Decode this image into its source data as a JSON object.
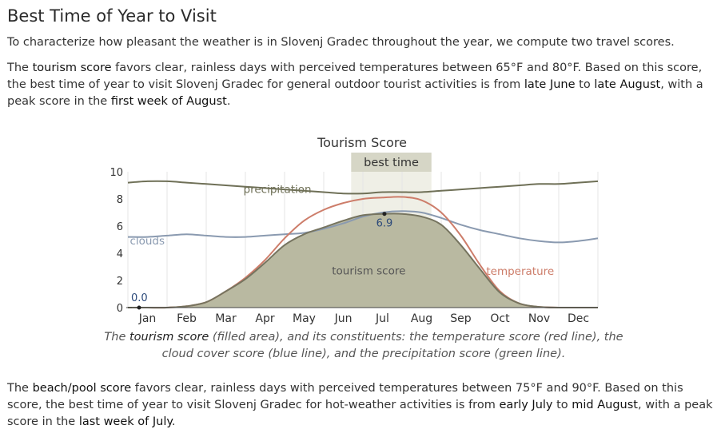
{
  "section": {
    "heading": "Best Time of Year to Visit",
    "intro": "To characterize how pleasant the weather is in Slovenj Gradec throughout the year, we compute two travel scores."
  },
  "tourism_paragraph": {
    "lead": "The ",
    "keyword": "tourism score",
    "text1": " favors clear, rainless days with perceived temperatures between 65°F and 80°F. Based on this score, the best time of year to visit Slovenj Gradec for general outdoor tourist activities is from ",
    "start": "late June",
    "text2": " to ",
    "end": "late August",
    "text3": ", with a peak score in the ",
    "peak": "first week of August",
    "text4": "."
  },
  "caption": {
    "lead": "The ",
    "keyword": "tourism score",
    "text": " (filled area), and its constituents: the temperature score (red line), the cloud cover score (blue line), and the precipitation score (green line)."
  },
  "beach_paragraph": {
    "lead": "The ",
    "keyword": "beach/pool score",
    "text1": " favors clear, rainless days with perceived temperatures between 75°F and 90°F. Based on this score, the best time of year to visit Slovenj Gradec for hot-weather activities is from ",
    "start": "early July",
    "text2": " to ",
    "end": "mid August",
    "text3": ", with a peak score in the ",
    "peak": "last week of July",
    "text4": "."
  },
  "chart_data": {
    "type": "area",
    "title": "Tourism Score",
    "ylim": [
      0,
      10
    ],
    "yticks": [
      0,
      2,
      4,
      6,
      8,
      10
    ],
    "x_range_month": [
      0,
      12
    ],
    "months": [
      "Jan",
      "Feb",
      "Mar",
      "Apr",
      "May",
      "Jun",
      "Jul",
      "Aug",
      "Sep",
      "Oct",
      "Nov",
      "Dec"
    ],
    "best_time": {
      "label": "best time",
      "start_month": 5.7,
      "end_month": 7.75
    },
    "annotations": {
      "min_label": "0.0",
      "min_x": 0.0,
      "min_y": 0.0,
      "peak_label": "6.9",
      "peak_x": 6.55,
      "peak_y": 6.9,
      "precipitation_label": "precipitation",
      "clouds_label": "clouds",
      "tourism_label": "tourism score",
      "temperature_label": "temperature"
    },
    "x": [
      0,
      0.5,
      1,
      1.5,
      2,
      2.5,
      3,
      3.5,
      4,
      4.5,
      5,
      5.5,
      6,
      6.5,
      7,
      7.5,
      8,
      8.5,
      9,
      9.5,
      10,
      10.5,
      11,
      11.5,
      12
    ],
    "series": [
      {
        "name": "tourism score",
        "color": "#76745f",
        "fill": "#b9b9a1",
        "values": [
          0,
          0,
          0,
          0.1,
          0.4,
          1.2,
          2.1,
          3.3,
          4.6,
          5.4,
          5.9,
          6.4,
          6.8,
          6.9,
          6.9,
          6.7,
          6.1,
          4.6,
          2.8,
          1.1,
          0.3,
          0.05,
          0,
          0,
          0
        ]
      },
      {
        "name": "temperature",
        "color": "#cd7d6a",
        "values": [
          0,
          0,
          0,
          0.1,
          0.4,
          1.2,
          2.2,
          3.5,
          5.1,
          6.4,
          7.2,
          7.7,
          8.0,
          8.1,
          8.15,
          7.9,
          7.0,
          5.3,
          3.1,
          1.2,
          0.3,
          0.05,
          0,
          0,
          0
        ]
      },
      {
        "name": "clouds",
        "color": "#8a9ab0",
        "values": [
          5.2,
          5.2,
          5.3,
          5.4,
          5.3,
          5.2,
          5.2,
          5.3,
          5.4,
          5.5,
          5.8,
          6.2,
          6.7,
          7.0,
          7.1,
          7.0,
          6.6,
          6.1,
          5.7,
          5.4,
          5.1,
          4.9,
          4.8,
          4.9,
          5.1
        ]
      },
      {
        "name": "precipitation",
        "color": "#6f7057",
        "values": [
          9.2,
          9.3,
          9.3,
          9.2,
          9.1,
          9.0,
          8.9,
          8.8,
          8.7,
          8.6,
          8.5,
          8.4,
          8.4,
          8.5,
          8.5,
          8.5,
          8.6,
          8.7,
          8.8,
          8.9,
          9.0,
          9.1,
          9.1,
          9.2,
          9.3
        ]
      }
    ]
  }
}
